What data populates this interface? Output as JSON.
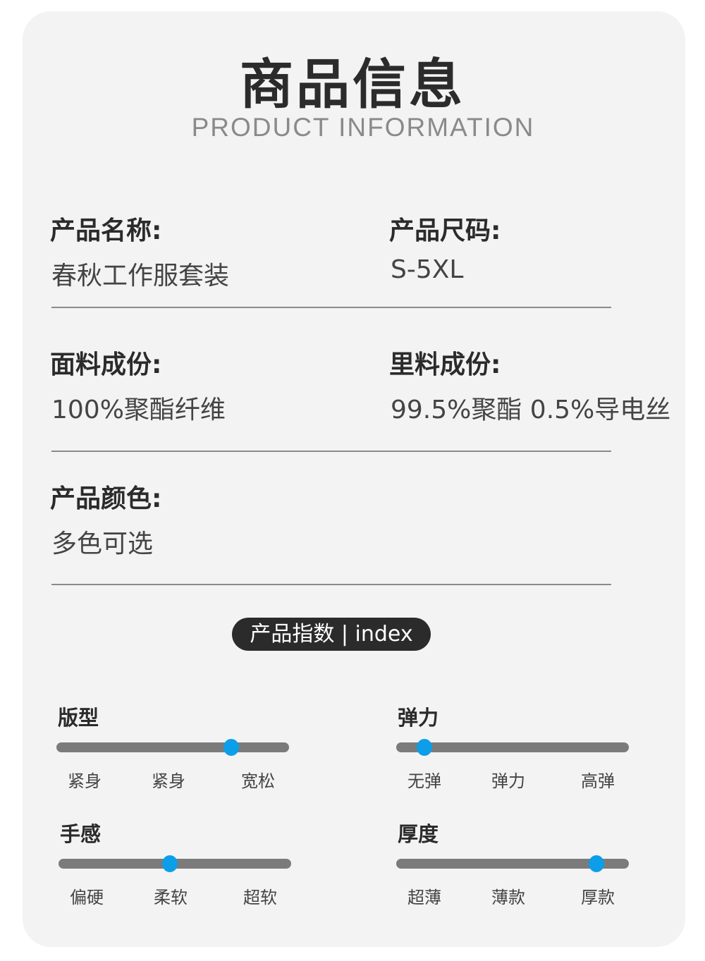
{
  "header": {
    "title": "商品信息",
    "subtitle": "PRODUCT INFORMATION"
  },
  "info": [
    {
      "label": "产品名称:",
      "value": "春秋工作服套装"
    },
    {
      "label": "产品尺码:",
      "value": "S-5XL"
    },
    {
      "label": "面料成份:",
      "value": "100%聚酯纤维"
    },
    {
      "label": "里料成份:",
      "value": "99.5%聚酯 0.5%导电丝"
    },
    {
      "label": "产品颜色:",
      "value": "多色可选"
    }
  ],
  "index_badge": "产品指数 | index",
  "indices": [
    {
      "title": "版型",
      "level": 0.75,
      "options": [
        "紧身",
        "紧身",
        "宽松"
      ]
    },
    {
      "title": "弹力",
      "level": 0.12,
      "options": [
        "无弹",
        "弹力",
        "高弹"
      ]
    },
    {
      "title": "手感",
      "level": 0.48,
      "options": [
        "偏硬",
        "柔软",
        "超软"
      ]
    },
    {
      "title": "厚度",
      "level": 0.86,
      "options": [
        "超薄",
        "薄款",
        "厚款"
      ]
    }
  ],
  "colors": {
    "card": "#f2f3f2",
    "knob": "#0c9ee8",
    "track": "#7b7b7b",
    "badge": "#2b2b2b"
  }
}
